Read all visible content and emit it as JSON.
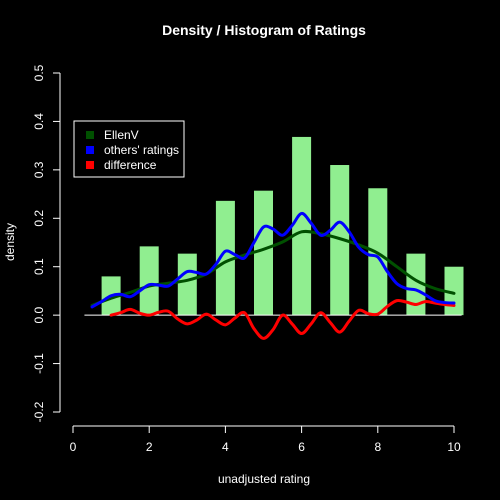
{
  "chart_data": {
    "type": "bar",
    "title": "Density / Histogram of Ratings",
    "xlabel": "unadjusted rating",
    "ylabel": "density",
    "xlim": [
      0,
      10
    ],
    "ylim": [
      -0.2,
      0.5
    ],
    "xticks": [
      "0",
      "2",
      "4",
      "6",
      "8",
      "10"
    ],
    "yticks": [
      "-0.2",
      "-0.1",
      "0.0",
      "0.1",
      "0.2",
      "0.3",
      "0.4",
      "0.5"
    ],
    "legend_position": "top-left",
    "grid": false,
    "bars": {
      "x": [
        1,
        2,
        3,
        4,
        5,
        6,
        7,
        8,
        9,
        10
      ],
      "values": [
        0.08,
        0.142,
        0.127,
        0.236,
        0.257,
        0.368,
        0.31,
        0.262,
        0.127,
        0.1
      ],
      "color": "#90ee90"
    },
    "series": [
      {
        "name": "EllenV",
        "color": "#005000",
        "x": [
          0.5,
          1,
          1.5,
          2,
          2.5,
          3,
          3.5,
          4,
          4.5,
          5,
          5.5,
          6,
          6.5,
          7,
          7.5,
          8,
          8.5,
          9,
          9.5,
          10
        ],
        "values": [
          0.02,
          0.035,
          0.047,
          0.06,
          0.066,
          0.072,
          0.085,
          0.11,
          0.124,
          0.136,
          0.151,
          0.172,
          0.168,
          0.158,
          0.145,
          0.128,
          0.1,
          0.072,
          0.055,
          0.045
        ]
      },
      {
        "name": "others' ratings",
        "color": "#0000ff",
        "x": [
          0.5,
          0.75,
          1,
          1.25,
          1.5,
          1.75,
          2,
          2.25,
          2.5,
          2.75,
          3,
          3.25,
          3.5,
          3.75,
          4,
          4.25,
          4.5,
          4.75,
          5,
          5.25,
          5.5,
          5.75,
          6,
          6.25,
          6.5,
          6.75,
          7,
          7.25,
          7.5,
          7.75,
          8,
          8.25,
          8.5,
          8.75,
          9,
          9.25,
          9.5,
          9.75,
          10
        ],
        "values": [
          0.017,
          0.028,
          0.04,
          0.043,
          0.038,
          0.05,
          0.063,
          0.062,
          0.06,
          0.075,
          0.09,
          0.088,
          0.085,
          0.105,
          0.132,
          0.125,
          0.118,
          0.15,
          0.182,
          0.178,
          0.165,
          0.185,
          0.21,
          0.19,
          0.165,
          0.175,
          0.192,
          0.172,
          0.14,
          0.125,
          0.12,
          0.09,
          0.065,
          0.055,
          0.052,
          0.042,
          0.03,
          0.026,
          0.025
        ]
      },
      {
        "name": "difference",
        "color": "#ff0000",
        "x": [
          1,
          1.25,
          1.5,
          1.75,
          2,
          2.25,
          2.5,
          2.75,
          3,
          3.25,
          3.5,
          3.75,
          4,
          4.25,
          4.5,
          4.75,
          5,
          5.25,
          5.5,
          5.75,
          6,
          6.25,
          6.5,
          6.75,
          7,
          7.25,
          7.5,
          7.75,
          8,
          8.25,
          8.5,
          8.75,
          9,
          9.25,
          9.5,
          9.75,
          10
        ],
        "values": [
          0.0,
          0.005,
          0.012,
          0.004,
          0.0,
          0.006,
          0.008,
          -0.008,
          -0.018,
          -0.01,
          0.002,
          -0.01,
          -0.02,
          -0.006,
          0.005,
          -0.028,
          -0.048,
          -0.03,
          0.0,
          -0.018,
          -0.038,
          -0.018,
          0.005,
          -0.015,
          -0.035,
          -0.012,
          0.01,
          0.003,
          0.002,
          0.018,
          0.03,
          0.027,
          0.022,
          0.028,
          0.025,
          0.022,
          0.02
        ]
      }
    ]
  }
}
